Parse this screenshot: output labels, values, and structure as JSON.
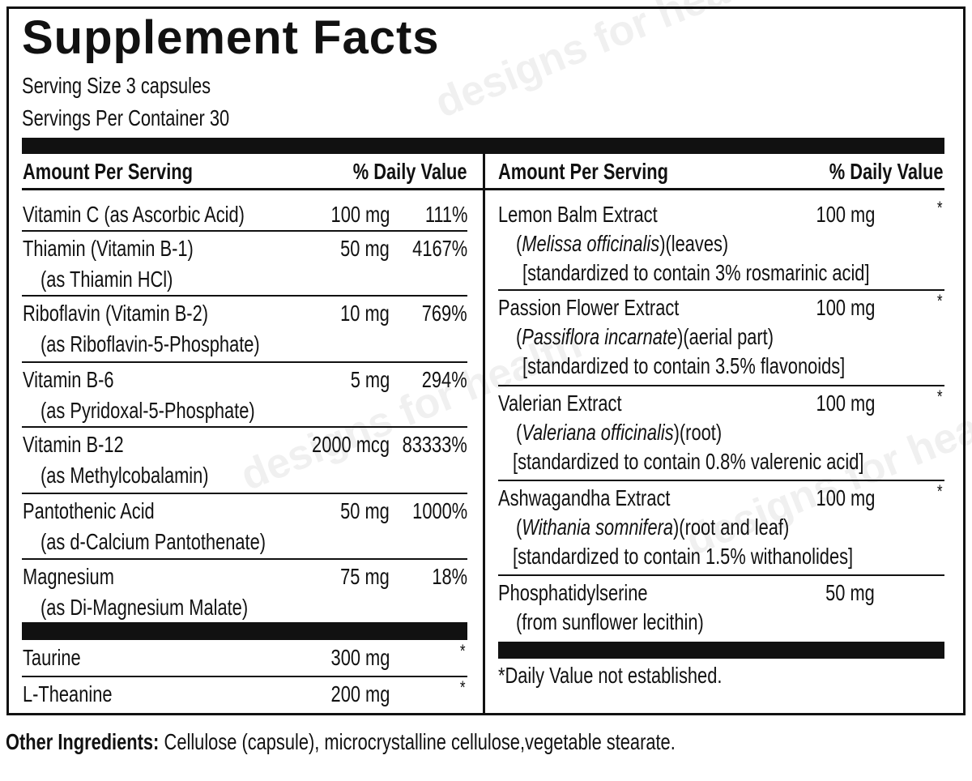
{
  "title": "Supplement Facts",
  "serving_size": "Serving Size 3 capsules",
  "servings_per_container": "Servings Per Container 30",
  "watermark": "designs for health",
  "left": {
    "header": [
      "Amount Per Serving",
      "% Daily Value"
    ],
    "rows": [
      {
        "name": [
          "Vitamin C (as Ascorbic Acid)"
        ],
        "amount": "100 mg",
        "dv": "111%"
      },
      {
        "name": [
          "Thiamin (Vitamin B-1)",
          "(as Thiamin HCl)"
        ],
        "amount": "50 mg",
        "dv": "4167%"
      },
      {
        "name": [
          "Riboflavin (Vitamin B-2)",
          "(as Riboflavin-5-Phosphate)"
        ],
        "amount": "10 mg",
        "dv": "769%"
      },
      {
        "name": [
          "Vitamin B-6",
          "(as Pyridoxal-5-Phosphate)"
        ],
        "amount": "5 mg",
        "dv": "294%"
      },
      {
        "name": [
          "Vitamin B-12",
          "(as Methylcobalamin)"
        ],
        "amount": "2000 mcg",
        "dv": "83333%"
      },
      {
        "name": [
          "Pantothenic Acid",
          "(as d-Calcium Pantothenate)"
        ],
        "amount": "50 mg",
        "dv": "1000%"
      },
      {
        "name": [
          "Magnesium",
          "(as Di-Magnesium Malate)"
        ],
        "amount": "75 mg",
        "dv": "18%"
      }
    ],
    "rows_after_bar": [
      {
        "name": [
          "Taurine"
        ],
        "amount": "300 mg",
        "dv": "*"
      },
      {
        "name": [
          "L-Theanine"
        ],
        "amount": "200 mg",
        "dv": "*"
      }
    ]
  },
  "right": {
    "header": [
      "Amount Per Serving",
      "% Daily Value"
    ],
    "rows": [
      {
        "name": "Lemon Balm Extract",
        "amount": "100 mg",
        "dv": "*",
        "source": [
          "(",
          "Melissa officinalis",
          ")(leaves)"
        ],
        "standard": "[standardized to contain 3% rosmarinic acid]"
      },
      {
        "name": "Passion Flower Extract",
        "amount": "100 mg",
        "dv": "*",
        "source": [
          "(",
          "Passiflora incarnate",
          ")(aerial part)"
        ],
        "standard": "[standardized to contain 3.5% flavonoids]"
      },
      {
        "name": "Valerian Extract",
        "amount": "100 mg",
        "dv": "*",
        "source": [
          "(",
          "Valeriana officinalis",
          ")(root)"
        ],
        "standard": "[standardized to contain 0.8% valerenic acid]"
      },
      {
        "name": "Ashwagandha Extract",
        "amount": "100 mg",
        "dv": "*",
        "source": [
          "(",
          "Withania somnifera",
          ")(root and leaf)"
        ],
        "standard": "[standardized to contain 1.5% withanolides]"
      },
      {
        "name": "Phosphatidylserine",
        "amount": "50 mg",
        "source": [
          "(from sunflower lecithin)"
        ]
      }
    ],
    "footnote": "*Daily Value not established."
  },
  "other_ingredients": {
    "label": "Other Ingredients:",
    "text": "Cellulose (capsule), microcrystalline cellulose,vegetable stearate."
  }
}
